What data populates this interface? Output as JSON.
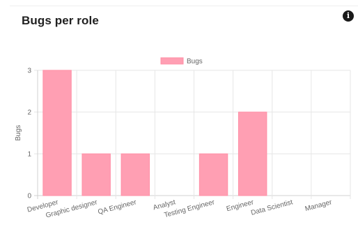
{
  "header": {
    "title": "Bugs per role",
    "info_icon": "info-icon"
  },
  "chart_data": {
    "type": "bar",
    "categories": [
      "Developer",
      "Graphic designer",
      "QA Engineer",
      "Analyst",
      "Testing Engineer",
      "Engineer",
      "Data Scientist",
      "Manager"
    ],
    "series": [
      {
        "name": "Bugs",
        "values": [
          3,
          1,
          1,
          0,
          1,
          2,
          0,
          0
        ],
        "color": "#ff9fb3",
        "border_color": "#ff8fa6"
      }
    ],
    "ylabel": "Bugs",
    "xlabel": "",
    "ylim": [
      0,
      3
    ],
    "yticks": [
      0,
      1,
      2,
      3
    ],
    "grid": true,
    "legend": "top-center",
    "tick_label_rotation": "-15deg"
  }
}
